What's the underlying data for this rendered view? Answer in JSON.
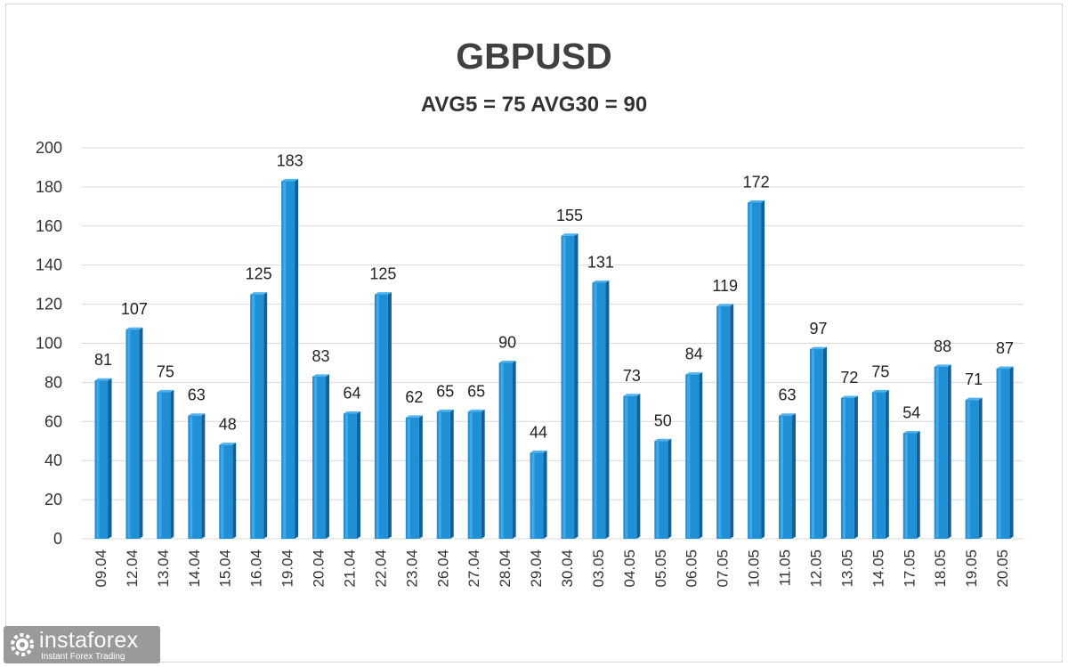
{
  "chart_data": {
    "type": "bar",
    "title": "GBPUSD",
    "subtitle": "AVG5 = 75 AVG30 = 90",
    "categories": [
      "09.04",
      "12.04",
      "13.04",
      "14.04",
      "15.04",
      "16.04",
      "19.04",
      "20.04",
      "21.04",
      "22.04",
      "23.04",
      "26.04",
      "27.04",
      "28.04",
      "29.04",
      "30.04",
      "03.05",
      "04.05",
      "05.05",
      "06.05",
      "07.05",
      "10.05",
      "11.05",
      "12.05",
      "13.05",
      "14.05",
      "17.05",
      "18.05",
      "19.05",
      "20.05"
    ],
    "values": [
      81,
      107,
      75,
      63,
      48,
      125,
      183,
      83,
      64,
      125,
      62,
      65,
      65,
      90,
      44,
      155,
      131,
      73,
      50,
      84,
      119,
      172,
      63,
      97,
      72,
      75,
      54,
      88,
      71,
      87
    ],
    "ylim": [
      0,
      200
    ],
    "yticks": [
      0,
      20,
      40,
      60,
      80,
      100,
      120,
      140,
      160,
      180,
      200
    ],
    "grid": true,
    "data_labels": true,
    "bar_color": "#1f8fd6",
    "bar_side_color": "#145f94",
    "grid_color": "#d9d9d9"
  },
  "logo": {
    "name": "instaforex",
    "tagline": "Instant Forex Trading"
  }
}
